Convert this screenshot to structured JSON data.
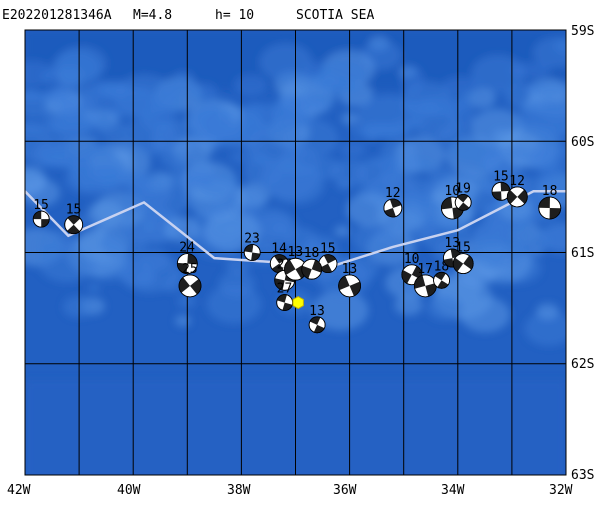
{
  "header": {
    "event_id": "E202201281346A",
    "magnitude_text": "M=4.8",
    "depth_text": "h= 10",
    "region": "SCOTIA SEA"
  },
  "axes": {
    "lon_labels": [
      "42W",
      "40W",
      "38W",
      "36W",
      "34W",
      "32W"
    ],
    "lat_labels": [
      "59S",
      "60S",
      "61S",
      "62S",
      "63S"
    ]
  },
  "map": {
    "lon_range": [
      -42,
      -32
    ],
    "lat_range": [
      -63,
      -59
    ],
    "grid_lon": [
      -42,
      -41,
      -40,
      -39,
      -38,
      -37,
      -36,
      -35,
      -34,
      -33,
      -32
    ],
    "grid_lat": [
      -63,
      -62,
      -61,
      -60,
      -59
    ],
    "ocean_colors": [
      "#1a55b8",
      "#2563c4",
      "#3a7ad6",
      "#5a95e4"
    ],
    "grid_color": "#000000",
    "plate_boundary_color": "#c8d2f0"
  },
  "plate_boundary": [
    [
      -42,
      -60.45
    ],
    [
      -41.2,
      -60.85
    ],
    [
      -39.8,
      -60.55
    ],
    [
      -38.5,
      -61.05
    ],
    [
      -37.0,
      -61.1
    ],
    [
      -36.5,
      -61.15
    ],
    [
      -35.2,
      -60.95
    ],
    [
      -34.0,
      -60.8
    ],
    [
      -32.6,
      -60.45
    ],
    [
      -32.0,
      -60.45
    ]
  ],
  "mechanisms": [
    {
      "label": "15",
      "lon": -41.7,
      "lat": -60.7
    },
    {
      "label": "15",
      "lon": -41.1,
      "lat": -60.75
    },
    {
      "label": "24",
      "lon": -39.0,
      "lat": -61.1
    },
    {
      "label": "25",
      "lon": -38.95,
      "lat": -61.3
    },
    {
      "label": "23",
      "lon": -37.8,
      "lat": -61.0
    },
    {
      "label": "14",
      "lon": -37.3,
      "lat": -61.1
    },
    {
      "label": "27",
      "lon": -37.2,
      "lat": -61.25
    },
    {
      "label": "13",
      "lon": -37.0,
      "lat": -61.15
    },
    {
      "label": "27",
      "lon": -37.2,
      "lat": -61.45
    },
    {
      "label": "15",
      "lon": -36.4,
      "lat": -61.1
    },
    {
      "label": "18",
      "lon": -36.7,
      "lat": -61.15
    },
    {
      "label": "13",
      "lon": -36.0,
      "lat": -61.3
    },
    {
      "label": "13",
      "lon": -36.6,
      "lat": -61.65
    },
    {
      "label": "12",
      "lon": -35.2,
      "lat": -60.6
    },
    {
      "label": "10",
      "lon": -34.85,
      "lat": -61.2
    },
    {
      "label": "17",
      "lon": -34.6,
      "lat": -61.3
    },
    {
      "label": "18",
      "lon": -34.3,
      "lat": -61.25
    },
    {
      "label": "13",
      "lon": -34.1,
      "lat": -61.05
    },
    {
      "label": "15",
      "lon": -33.9,
      "lat": -61.1
    },
    {
      "label": "10",
      "lon": -34.1,
      "lat": -60.6
    },
    {
      "label": "19",
      "lon": -33.9,
      "lat": -60.55
    },
    {
      "label": "15",
      "lon": -33.2,
      "lat": -60.45
    },
    {
      "label": "12",
      "lon": -32.9,
      "lat": -60.5
    },
    {
      "label": "18",
      "lon": -32.3,
      "lat": -60.6
    }
  ],
  "epicenter": {
    "lon": -36.95,
    "lat": -61.45,
    "color": "#ffff00",
    "stroke": "#c8b400"
  }
}
